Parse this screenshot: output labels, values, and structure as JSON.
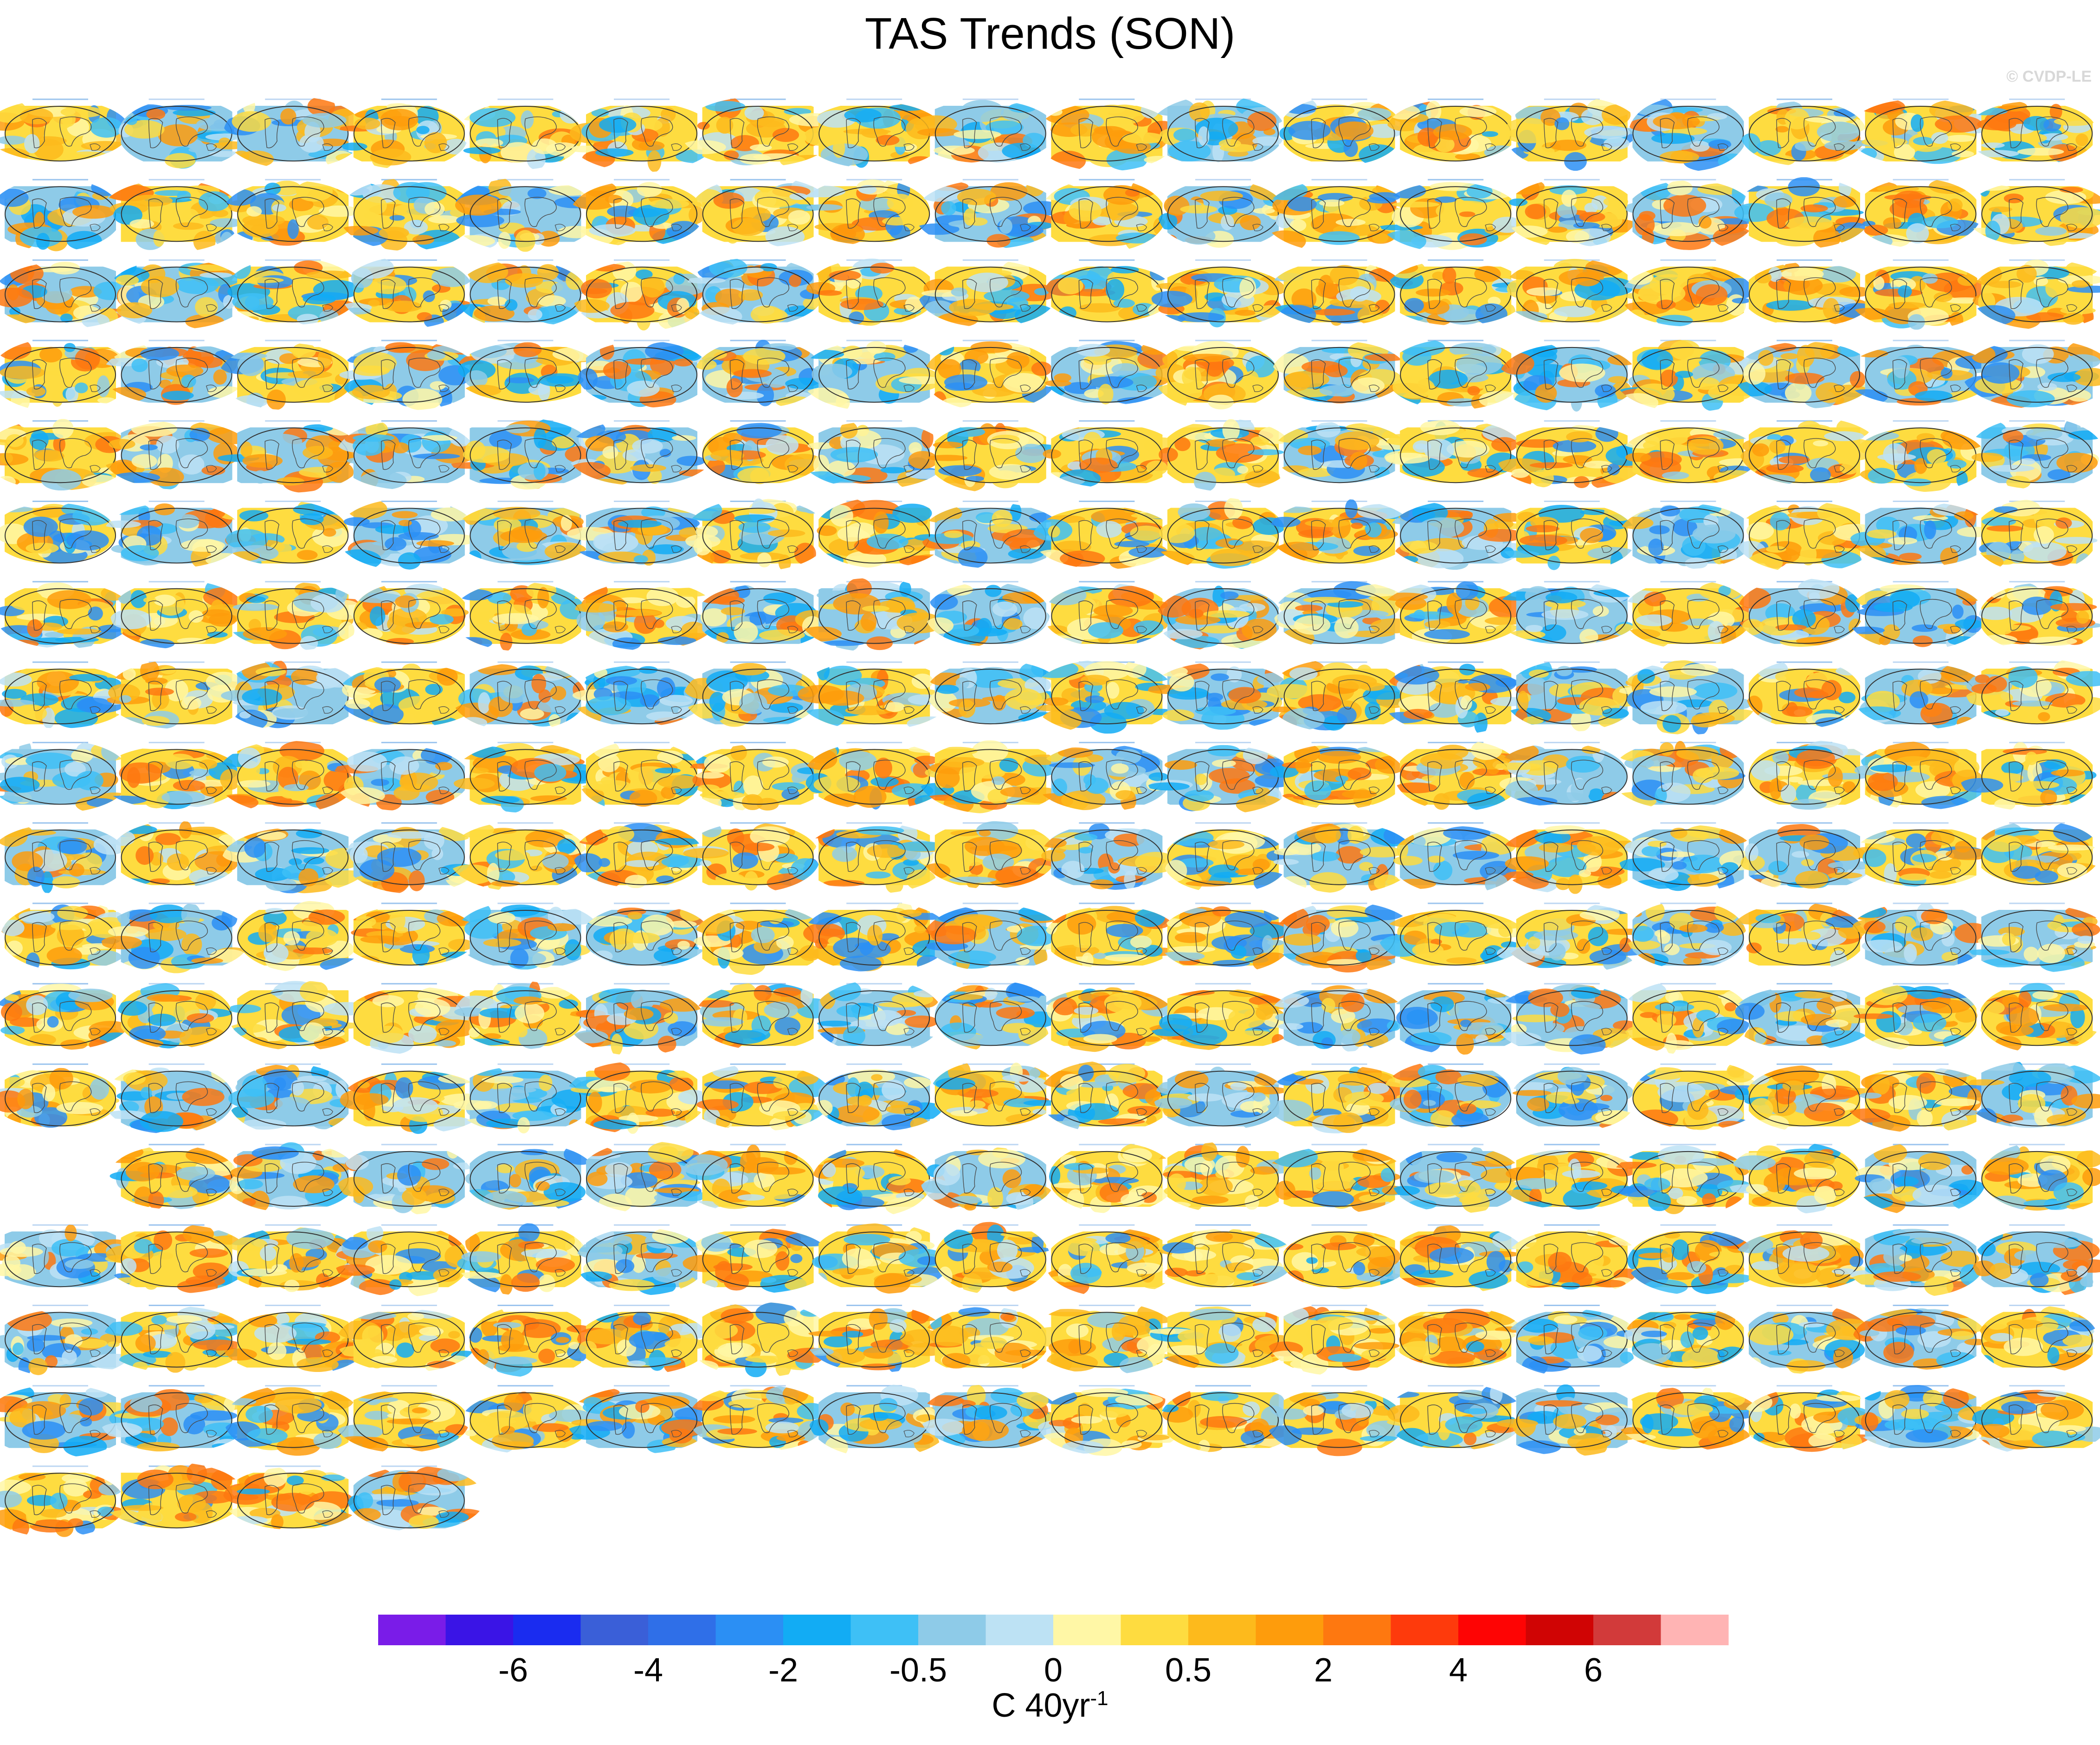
{
  "chart_data": {
    "type": "heatmap",
    "title": "TAS Trends (SON)",
    "watermark": "© CVDP-LE",
    "panel_count": 309,
    "grid_columns": 18,
    "colorbar": {
      "label": "C 40yr",
      "label_superscript": "-1",
      "tick_labels": [
        "-6",
        "-4",
        "-2",
        "-0.5",
        "0",
        "0.5",
        "2",
        "4",
        "6"
      ],
      "colors": [
        "#7a1ce8",
        "#3a14e6",
        "#1a2cf0",
        "#3a5fd8",
        "#2f6fe8",
        "#2b8ff4",
        "#12acf4",
        "#3ec0f6",
        "#8ecbe8",
        "#bde2f4",
        "#fff7a6",
        "#fedc40",
        "#fdba1c",
        "#fe9c0c",
        "#fe7810",
        "#fe3a0c",
        "#fe0404",
        "#d00404",
        "#d23a3a",
        "#ffb4b4"
      ]
    }
  }
}
